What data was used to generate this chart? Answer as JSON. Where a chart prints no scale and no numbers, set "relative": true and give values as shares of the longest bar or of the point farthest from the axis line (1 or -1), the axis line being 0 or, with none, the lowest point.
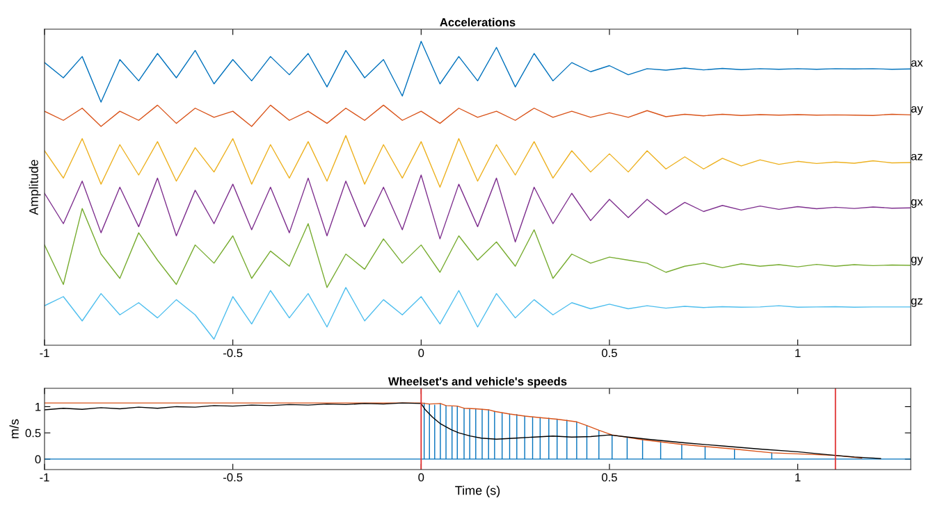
{
  "chart_data": [
    {
      "type": "line",
      "title": "Accelerations",
      "ylabel": "Amplitude",
      "relative": true,
      "xlim": [
        -1,
        1.3
      ],
      "xticks": [
        -1,
        -0.5,
        0,
        0.5,
        1
      ],
      "x": [
        -1,
        -0.95,
        -0.9,
        -0.85,
        -0.8,
        -0.75,
        -0.7,
        -0.65,
        -0.6,
        -0.55,
        -0.5,
        -0.45,
        -0.4,
        -0.35,
        -0.3,
        -0.25,
        -0.2,
        -0.15,
        -0.1,
        -0.05,
        0,
        0.05,
        0.1,
        0.15,
        0.2,
        0.25,
        0.3,
        0.35,
        0.4,
        0.45,
        0.5,
        0.55,
        0.6,
        0.65,
        0.7,
        0.75,
        0.8,
        0.85,
        0.9,
        0.95,
        1,
        1.05,
        1.1,
        1.15,
        1.2,
        1.25,
        1.3
      ],
      "series": [
        {
          "name": "ax",
          "color": "#0072bd",
          "values": [
            0.93,
            0.88,
            0.95,
            0.8,
            0.94,
            0.87,
            0.96,
            0.88,
            0.97,
            0.86,
            0.94,
            0.87,
            0.95,
            0.89,
            0.96,
            0.85,
            0.97,
            0.88,
            0.94,
            0.82,
            1.0,
            0.86,
            0.95,
            0.87,
            0.98,
            0.85,
            0.96,
            0.87,
            0.93,
            0.9,
            0.92,
            0.89,
            0.91,
            0.905,
            0.912,
            0.906,
            0.911,
            0.907,
            0.91,
            0.908,
            0.91,
            0.908,
            0.91,
            0.909,
            0.91,
            0.908,
            0.909
          ]
        },
        {
          "name": "ay",
          "color": "#d95319",
          "values": [
            0.77,
            0.74,
            0.78,
            0.72,
            0.77,
            0.74,
            0.79,
            0.73,
            0.78,
            0.75,
            0.77,
            0.72,
            0.79,
            0.74,
            0.77,
            0.73,
            0.78,
            0.74,
            0.79,
            0.74,
            0.77,
            0.73,
            0.78,
            0.75,
            0.77,
            0.74,
            0.78,
            0.75,
            0.77,
            0.75,
            0.765,
            0.75,
            0.772,
            0.752,
            0.76,
            0.755,
            0.76,
            0.756,
            0.759,
            0.757,
            0.759,
            0.757,
            0.758,
            0.757,
            0.756,
            0.76,
            0.758
          ]
        },
        {
          "name": "az",
          "color": "#edb120",
          "values": [
            0.64,
            0.55,
            0.68,
            0.53,
            0.66,
            0.56,
            0.67,
            0.54,
            0.65,
            0.57,
            0.68,
            0.53,
            0.66,
            0.55,
            0.67,
            0.54,
            0.69,
            0.53,
            0.66,
            0.55,
            0.67,
            0.52,
            0.68,
            0.54,
            0.66,
            0.56,
            0.67,
            0.55,
            0.64,
            0.57,
            0.63,
            0.57,
            0.64,
            0.58,
            0.62,
            0.58,
            0.615,
            0.59,
            0.61,
            0.595,
            0.605,
            0.598,
            0.603,
            0.599,
            0.607,
            0.6,
            0.601
          ]
        },
        {
          "name": "gx",
          "color": "#7e2f8e",
          "values": [
            0.5,
            0.4,
            0.54,
            0.37,
            0.52,
            0.39,
            0.55,
            0.36,
            0.51,
            0.4,
            0.53,
            0.38,
            0.52,
            0.37,
            0.55,
            0.36,
            0.54,
            0.39,
            0.52,
            0.38,
            0.56,
            0.35,
            0.53,
            0.39,
            0.55,
            0.34,
            0.52,
            0.4,
            0.5,
            0.41,
            0.48,
            0.42,
            0.48,
            0.43,
            0.47,
            0.44,
            0.46,
            0.445,
            0.458,
            0.447,
            0.456,
            0.449,
            0.454,
            0.45,
            0.455,
            0.451,
            0.452
          ]
        },
        {
          "name": "gy",
          "color": "#77ac30",
          "values": [
            0.33,
            0.2,
            0.45,
            0.3,
            0.22,
            0.37,
            0.28,
            0.2,
            0.33,
            0.27,
            0.36,
            0.22,
            0.31,
            0.26,
            0.4,
            0.19,
            0.3,
            0.25,
            0.35,
            0.27,
            0.33,
            0.24,
            0.36,
            0.28,
            0.34,
            0.26,
            0.38,
            0.22,
            0.3,
            0.27,
            0.29,
            0.28,
            0.27,
            0.24,
            0.26,
            0.27,
            0.255,
            0.268,
            0.26,
            0.265,
            0.258,
            0.266,
            0.26,
            0.265,
            0.262,
            0.264,
            0.263
          ]
        },
        {
          "name": "gz",
          "color": "#4dbeee",
          "values": [
            0.13,
            0.16,
            0.08,
            0.17,
            0.1,
            0.14,
            0.09,
            0.15,
            0.1,
            0.02,
            0.16,
            0.07,
            0.18,
            0.09,
            0.17,
            0.06,
            0.19,
            0.08,
            0.15,
            0.1,
            0.16,
            0.07,
            0.18,
            0.06,
            0.17,
            0.09,
            0.15,
            0.1,
            0.14,
            0.12,
            0.135,
            0.12,
            0.13,
            0.122,
            0.128,
            0.124,
            0.127,
            0.125,
            0.126,
            0.13,
            0.125,
            0.126,
            0.127,
            0.125,
            0.126,
            0.126,
            0.126
          ]
        }
      ]
    },
    {
      "type": "line",
      "title": "Wheelset's and vehicle's speeds",
      "xlabel": "Time (s)",
      "ylabel": "m/s",
      "xlim": [
        -1,
        1.3
      ],
      "ylim": [
        -0.2,
        1.35
      ],
      "xticks": [
        -1,
        -0.5,
        0,
        0.5,
        1
      ],
      "yticks": [
        0,
        0.5,
        1
      ],
      "series": [
        {
          "color": "#0072bd",
          "x": [
            -1,
            0.008,
            0.008,
            0.008,
            0.022,
            0.022,
            0.022,
            0.036,
            0.036,
            0.036,
            0.051,
            0.051,
            0.051,
            0.066,
            0.066,
            0.066,
            0.082,
            0.082,
            0.082,
            0.096,
            0.096,
            0.096,
            0.114,
            0.114,
            0.114,
            0.129,
            0.129,
            0.129,
            0.145,
            0.145,
            0.145,
            0.162,
            0.162,
            0.162,
            0.179,
            0.179,
            0.179,
            0.195,
            0.195,
            0.195,
            0.215,
            0.215,
            0.215,
            0.235,
            0.235,
            0.235,
            0.254,
            0.254,
            0.254,
            0.275,
            0.275,
            0.275,
            0.296,
            0.296,
            0.296,
            0.316,
            0.316,
            0.316,
            0.339,
            0.339,
            0.339,
            0.361,
            0.361,
            0.361,
            0.387,
            0.387,
            0.387,
            0.413,
            0.413,
            0.413,
            0.44,
            0.44,
            0.44,
            0.472,
            0.472,
            0.472,
            0.507,
            0.507,
            0.507,
            0.547,
            0.547,
            0.547,
            0.588,
            0.588,
            0.588,
            0.636,
            0.636,
            0.636,
            0.692,
            0.692,
            0.692,
            0.754,
            0.754,
            0.754,
            0.832,
            0.832,
            0.832,
            0.931,
            0.931,
            0.931,
            1.3
          ],
          "values": [
            0,
            0,
            1.07,
            0,
            0,
            1.05,
            0,
            0,
            1.03,
            0,
            0,
            1.06,
            0,
            0,
            1.02,
            0,
            0,
            1.0,
            0,
            0,
            1.01,
            0,
            0,
            0.97,
            0,
            0,
            0.96,
            0,
            0,
            0.96,
            0,
            0,
            0.95,
            0,
            0,
            0.94,
            0,
            0,
            0.91,
            0,
            0,
            0.88,
            0,
            0,
            0.86,
            0,
            0,
            0.85,
            0,
            0,
            0.82,
            0,
            0,
            0.8,
            0,
            0,
            0.79,
            0,
            0,
            0.78,
            0,
            0,
            0.76,
            0,
            0,
            0.74,
            0,
            0,
            0.71,
            0,
            0,
            0.64,
            0,
            0,
            0.55,
            0,
            0,
            0.46,
            0,
            0,
            0.41,
            0,
            0,
            0.37,
            0,
            0,
            0.33,
            0,
            0,
            0.28,
            0,
            0,
            0.24,
            0,
            0,
            0.19,
            0,
            0,
            0.12,
            0,
            0
          ]
        },
        {
          "color": "#d95319",
          "x": [
            -1,
            0,
            0.022,
            0.051,
            0.066,
            0.096,
            0.114,
            0.145,
            0.179,
            0.195,
            0.235,
            0.275,
            0.316,
            0.361,
            0.413,
            0.44,
            0.472,
            0.507,
            0.588,
            0.692,
            0.832,
            0.931,
            1.1,
            1.17
          ],
          "values": [
            1.07,
            1.07,
            1.05,
            1.06,
            1.02,
            1.01,
            0.97,
            0.96,
            0.94,
            0.91,
            0.86,
            0.82,
            0.79,
            0.76,
            0.71,
            0.64,
            0.55,
            0.46,
            0.37,
            0.28,
            0.19,
            0.12,
            0.07,
            0.02
          ]
        },
        {
          "color": "#000000",
          "x": [
            -1,
            -0.95,
            -0.9,
            -0.85,
            -0.8,
            -0.75,
            -0.7,
            -0.65,
            -0.6,
            -0.55,
            -0.5,
            -0.45,
            -0.4,
            -0.35,
            -0.3,
            -0.25,
            -0.2,
            -0.15,
            -0.1,
            -0.05,
            0,
            0.01,
            0.03,
            0.05,
            0.08,
            0.1,
            0.13,
            0.16,
            0.2,
            0.25,
            0.3,
            0.35,
            0.4,
            0.45,
            0.5,
            0.55,
            0.6,
            0.7,
            0.8,
            0.9,
            1.0,
            1.1,
            1.15,
            1.2,
            1.22
          ],
          "values": [
            0.94,
            0.97,
            0.95,
            0.98,
            0.96,
            0.99,
            0.97,
            1.0,
            0.99,
            1.02,
            1.01,
            1.03,
            1.02,
            1.04,
            1.03,
            1.05,
            1.04,
            1.06,
            1.05,
            1.07,
            1.06,
            0.95,
            0.8,
            0.68,
            0.56,
            0.5,
            0.44,
            0.4,
            0.38,
            0.4,
            0.42,
            0.44,
            0.42,
            0.43,
            0.46,
            0.42,
            0.38,
            0.31,
            0.25,
            0.19,
            0.14,
            0.07,
            0.04,
            0.02,
            0.01
          ]
        }
      ],
      "ref_lines": [
        {
          "axis": "x",
          "value": 0,
          "color": "#e03030"
        },
        {
          "axis": "x",
          "value": 1.1,
          "color": "#e03030"
        }
      ]
    }
  ]
}
